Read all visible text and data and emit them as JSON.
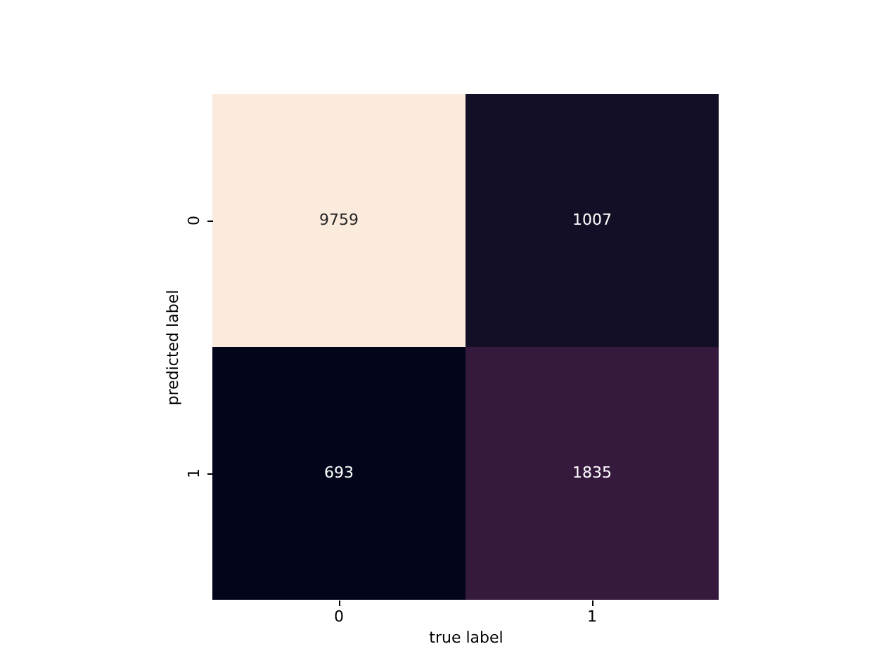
{
  "chart_data": {
    "type": "heatmap",
    "xlabel": "true label",
    "ylabel": "predicted label",
    "categories": [
      "0",
      "1"
    ],
    "y_categories": [
      "0",
      "1"
    ],
    "cells": [
      [
        9759,
        1007
      ],
      [
        693,
        1835
      ]
    ],
    "data_labels": true
  }
}
